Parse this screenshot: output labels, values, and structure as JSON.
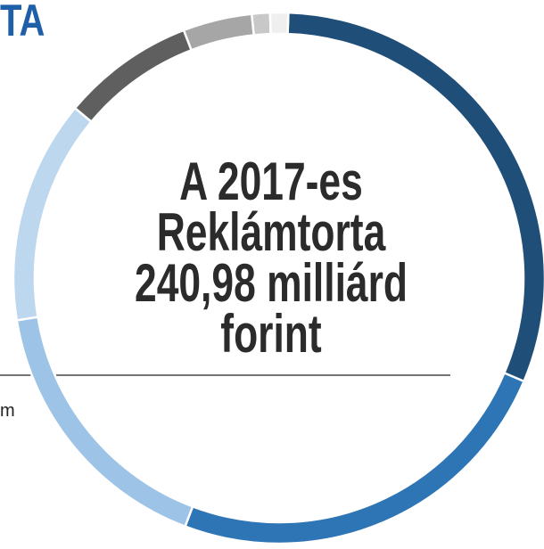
{
  "heading": "TA",
  "note": "m",
  "chart_data": {
    "type": "donut",
    "title": [
      "A 2017-es",
      "Reklámtorta",
      "240,98 milliárd",
      "forint"
    ],
    "values": [
      30.8,
      24.4,
      16.7,
      13.6,
      8.1,
      4.2,
      1.1,
      1.1
    ],
    "colors": [
      "#1f4e79",
      "#2e75b6",
      "#9dc3e6",
      "#bdd7ee",
      "#5f5f5f",
      "#a6a6a6",
      "#c8c8c8",
      "#efefef"
    ]
  }
}
